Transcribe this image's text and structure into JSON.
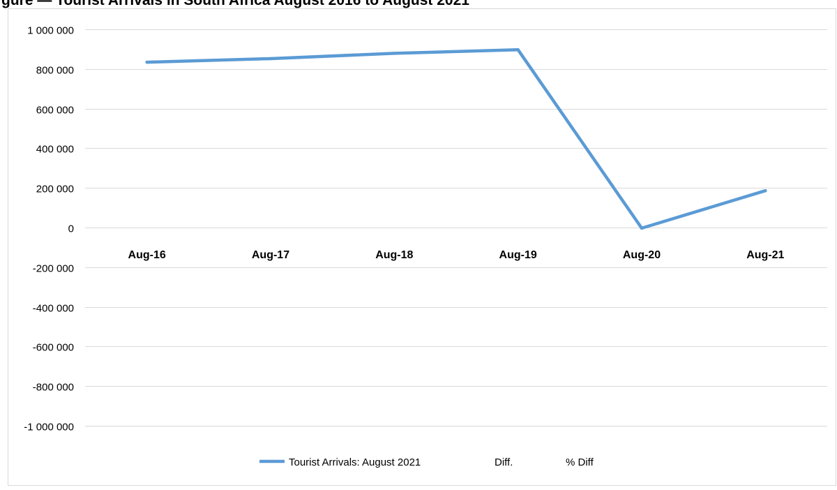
{
  "header": {
    "clipped_title": "gure — Tourist Arrivals in South Africa August 2016 to August 2021"
  },
  "chart_data": {
    "type": "line",
    "categories": [
      "Aug-16",
      "Aug-17",
      "Aug-18",
      "Aug-19",
      "Aug-20",
      "Aug-21"
    ],
    "series": [
      {
        "name": "Tourist Arrivals: August 2021",
        "values": [
          834000,
          852000,
          879000,
          897000,
          -3000,
          186000
        ],
        "color": "#5b9bd5"
      }
    ],
    "legend_entries": [
      "Tourist Arrivals: August 2021",
      "Diff.",
      "% Diff"
    ],
    "y_ticks": [
      1000000,
      800000,
      600000,
      400000,
      200000,
      0,
      -200000,
      -400000,
      -600000,
      -800000,
      -1000000
    ],
    "y_tick_labels": [
      "1 000 000",
      "800 000",
      "600 000",
      "400 000",
      "200 000",
      "0",
      "-200 000",
      "-400 000",
      "-600 000",
      "-800 000",
      "-1 000 000"
    ],
    "ylim": [
      -1000000,
      1000000
    ],
    "grid": true,
    "legend_position": "bottom",
    "title": "",
    "xlabel": "",
    "ylabel": ""
  }
}
